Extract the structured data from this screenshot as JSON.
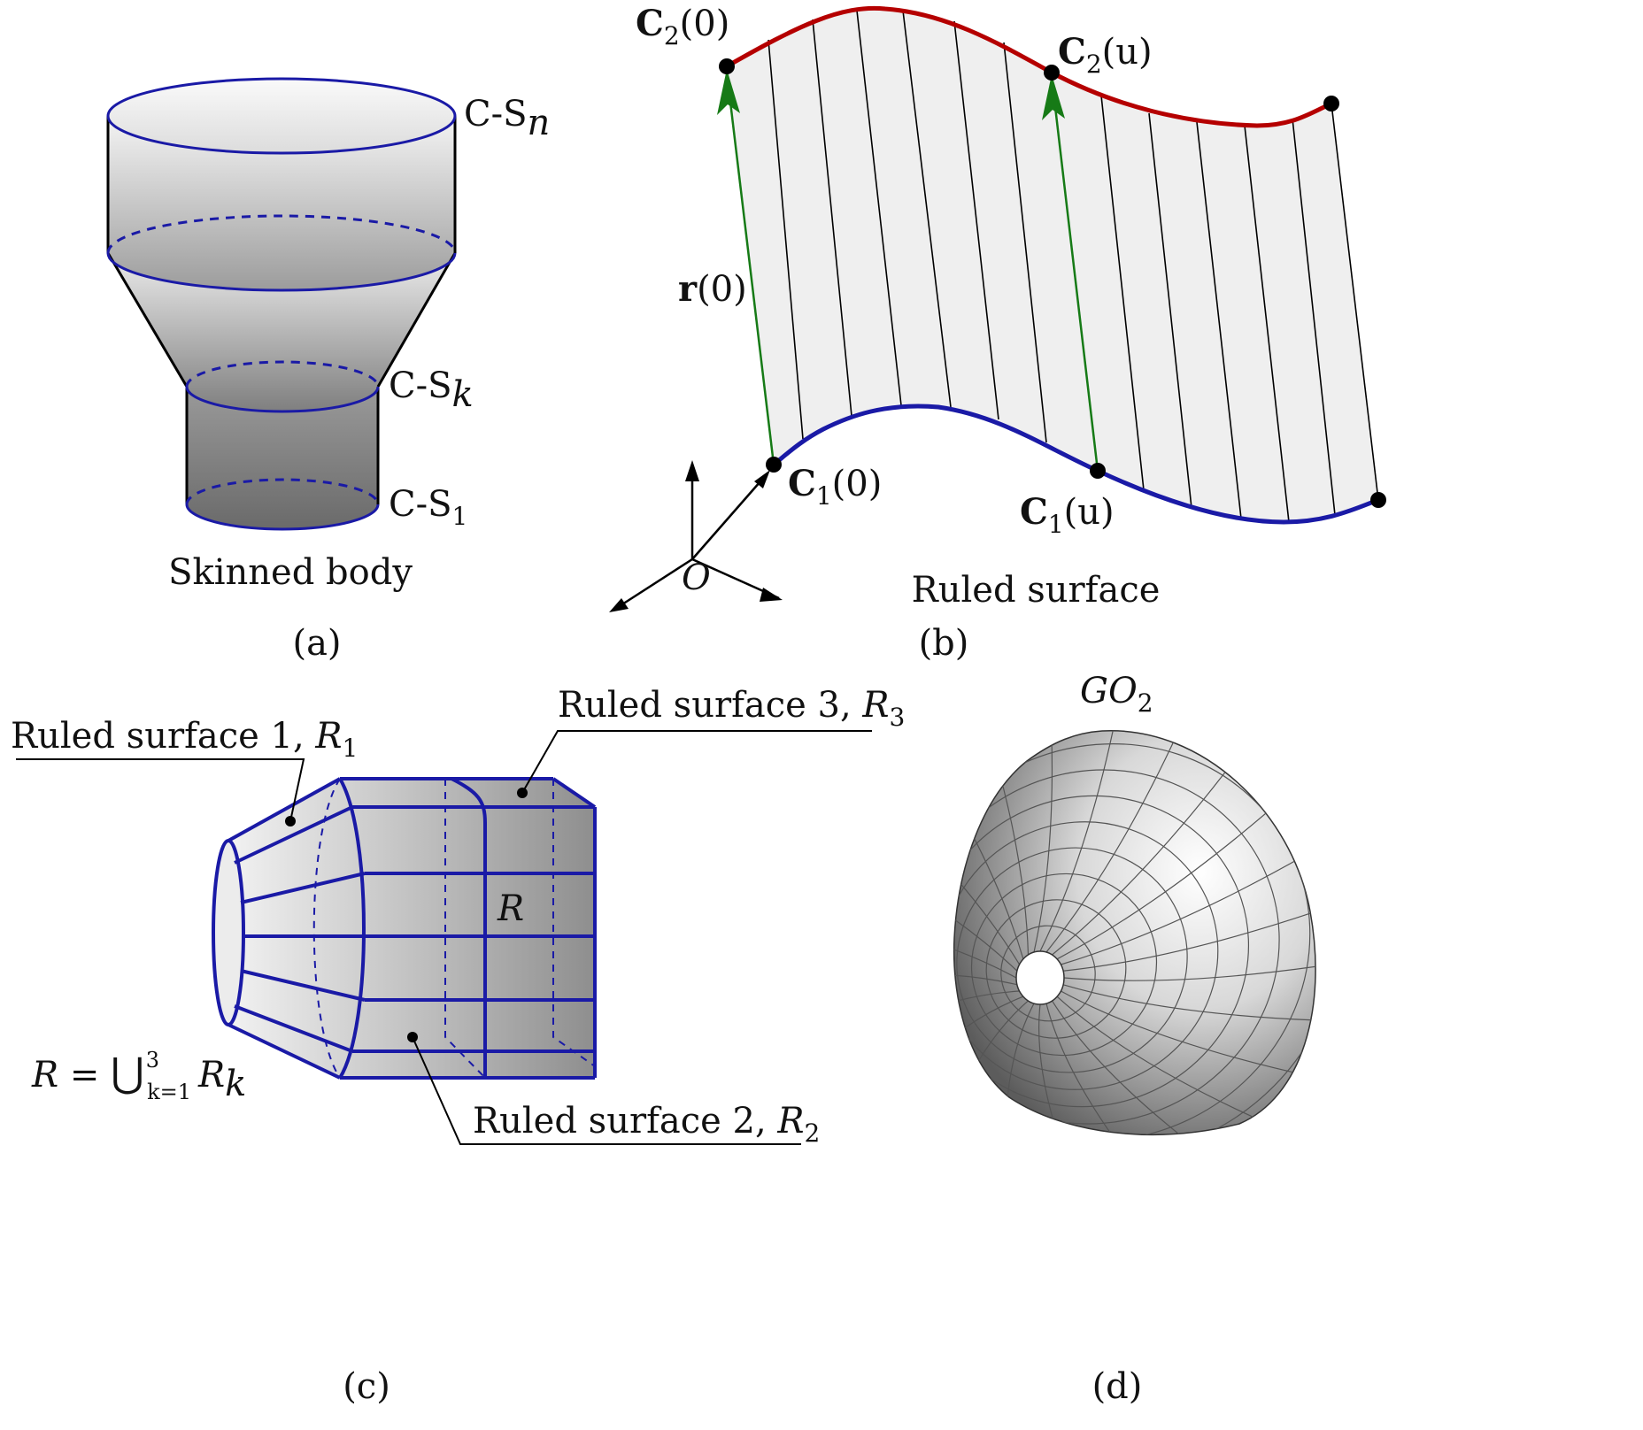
{
  "panel_a": {
    "caption": "(a)",
    "title": "Skinned body",
    "label_top_prefix": "C-S",
    "label_top_sub": "n",
    "label_mid_prefix": "C-S",
    "label_mid_sub": "k",
    "label_bot_prefix": "C-S",
    "label_bot_sub": "1"
  },
  "panel_b": {
    "caption": "(b)",
    "title": "Ruled surface",
    "c2_0": {
      "bold": "C",
      "sub": "2",
      "rest": "(0)"
    },
    "c2_u": {
      "bold": "C",
      "sub": "2",
      "rest": "(u)"
    },
    "c1_0": {
      "bold": "C",
      "sub": "1",
      "rest": "(0)"
    },
    "c1_u": {
      "bold": "C",
      "sub": "1",
      "rest": "(u)"
    },
    "r_0": {
      "bold": "r",
      "rest": "(0)"
    },
    "origin": "O"
  },
  "panel_c": {
    "caption": "(c)",
    "rs1_text": "Ruled surface 1, ",
    "rs1_sym": "R",
    "rs1_sub": "1",
    "rs2_text": "Ruled surface 2, ",
    "rs2_sym": "R",
    "rs2_sub": "2",
    "rs3_text": "Ruled surface 3, ",
    "rs3_sym": "R",
    "rs3_sub": "3",
    "center_sym": "R",
    "union_lhs": "R = ",
    "union_op": "⋃",
    "union_sup": "3",
    "union_sub": "k=1",
    "union_rhs": "R",
    "union_rhs_sub": "k"
  },
  "panel_d": {
    "caption": "(d)",
    "title_main": "GO",
    "title_sub": "2"
  },
  "colors": {
    "blue": "#1a1aa6",
    "red": "#b50000",
    "green": "#167a16",
    "black": "#000000"
  }
}
